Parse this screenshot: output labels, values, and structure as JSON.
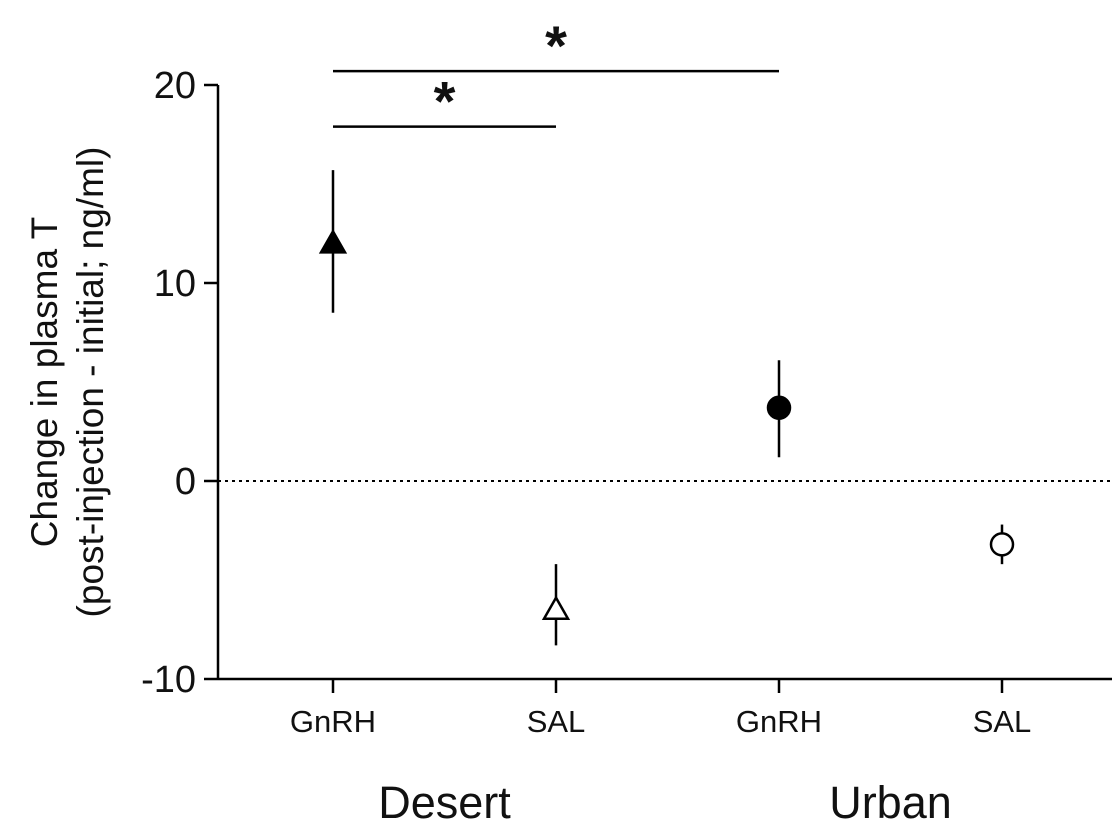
{
  "chart_data": {
    "type": "scatter",
    "ylabel_line1": "Change in plasma T",
    "ylabel_line2": "(post-injection - initial; ng/ml)",
    "ylim": [
      -10,
      20
    ],
    "yticks": [
      -10,
      0,
      10,
      20
    ],
    "reference_line": 0,
    "categories": [
      "GnRH",
      "SAL",
      "GnRH",
      "SAL"
    ],
    "groups": [
      {
        "name": "Desert",
        "categories": [
          0,
          1
        ]
      },
      {
        "name": "Urban",
        "categories": [
          2,
          3
        ]
      }
    ],
    "points": [
      {
        "category": "GnRH",
        "group": "Desert",
        "value": 12.0,
        "error_low": 8.5,
        "error_high": 15.7,
        "marker": "triangle",
        "filled": true
      },
      {
        "category": "SAL",
        "group": "Desert",
        "value": -6.5,
        "error_low": -8.3,
        "error_high": -4.2,
        "marker": "triangle",
        "filled": false
      },
      {
        "category": "GnRH",
        "group": "Urban",
        "value": 3.7,
        "error_low": 1.2,
        "error_high": 6.1,
        "marker": "circle",
        "filled": true
      },
      {
        "category": "SAL",
        "group": "Urban",
        "value": -3.2,
        "error_low": -4.2,
        "error_high": -2.2,
        "marker": "circle",
        "filled": false
      }
    ],
    "significance": [
      {
        "from": 0,
        "to": 1,
        "y": 17.9,
        "label": "*"
      },
      {
        "from": 0,
        "to": 2,
        "y": 20.7,
        "label": "*"
      }
    ],
    "colors": {
      "marker": "#000000",
      "axis": "#000000",
      "text": "#111111"
    }
  }
}
